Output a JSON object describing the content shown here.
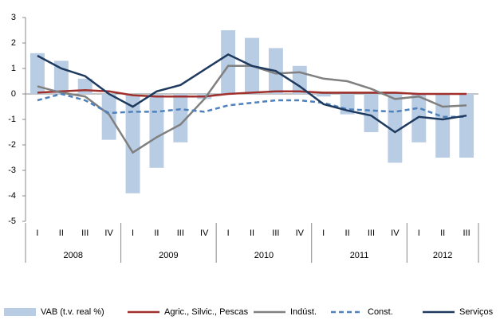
{
  "chart_data": {
    "type": "bar_line",
    "categories": [
      "I",
      "II",
      "III",
      "IV",
      "I",
      "II",
      "III",
      "IV",
      "I",
      "II",
      "III",
      "IV",
      "I",
      "II",
      "III",
      "IV",
      "I",
      "II",
      "III"
    ],
    "category_groups": [
      {
        "name": "2008",
        "size": 4
      },
      {
        "name": "2009",
        "size": 4
      },
      {
        "name": "2010",
        "size": 4
      },
      {
        "name": "2011",
        "size": 4
      },
      {
        "name": "2012",
        "size": 3
      }
    ],
    "series": [
      {
        "name": "VAB (t.v. real %)",
        "kind": "bar",
        "color": "#b8cce4",
        "values": [
          1.6,
          1.3,
          0.6,
          -1.8,
          -3.9,
          -2.9,
          -1.9,
          -0.2,
          2.5,
          2.2,
          1.8,
          1.1,
          -0.1,
          -0.8,
          -1.5,
          -2.7,
          -1.9,
          -2.5,
          -2.5
        ]
      },
      {
        "name": "Agric., Silvic., Pescas",
        "kind": "line",
        "color": "#a0302c",
        "values": [
          0.05,
          0.1,
          0.15,
          0.1,
          -0.05,
          -0.1,
          -0.1,
          -0.1,
          0,
          0.05,
          0.1,
          0.1,
          0.05,
          0.05,
          0.05,
          0.05,
          0,
          0,
          0
        ]
      },
      {
        "name": "Indúst.",
        "kind": "line",
        "color": "#808080",
        "values": [
          0.3,
          0.05,
          -0.1,
          -0.8,
          -2.3,
          -1.7,
          -1.2,
          -0.2,
          1.1,
          1.1,
          0.8,
          0.85,
          0.6,
          0.5,
          0.2,
          -0.2,
          -0.1,
          -0.5,
          -0.45
        ]
      },
      {
        "name": "Const.",
        "kind": "line",
        "dashed": true,
        "color": "#4f81bd",
        "values": [
          -0.25,
          0,
          -0.25,
          -0.75,
          -0.7,
          -0.7,
          -0.6,
          -0.7,
          -0.45,
          -0.35,
          -0.25,
          -0.25,
          -0.35,
          -0.6,
          -0.65,
          -0.7,
          -0.55,
          -0.9,
          -0.9
        ]
      },
      {
        "name": "Serviços",
        "kind": "line",
        "color": "#1f3a5f",
        "values": [
          1.5,
          1.0,
          0.7,
          0,
          -0.5,
          0.1,
          0.35,
          0.95,
          1.55,
          1.1,
          0.9,
          0.3,
          -0.4,
          -0.65,
          -0.85,
          -1.5,
          -0.9,
          -1.0,
          -0.85
        ]
      }
    ],
    "ylim": [
      -5,
      3
    ],
    "yticks": [
      -5,
      -4,
      -3,
      -2,
      -1,
      0,
      1,
      2,
      3
    ],
    "legend": "bottom"
  }
}
